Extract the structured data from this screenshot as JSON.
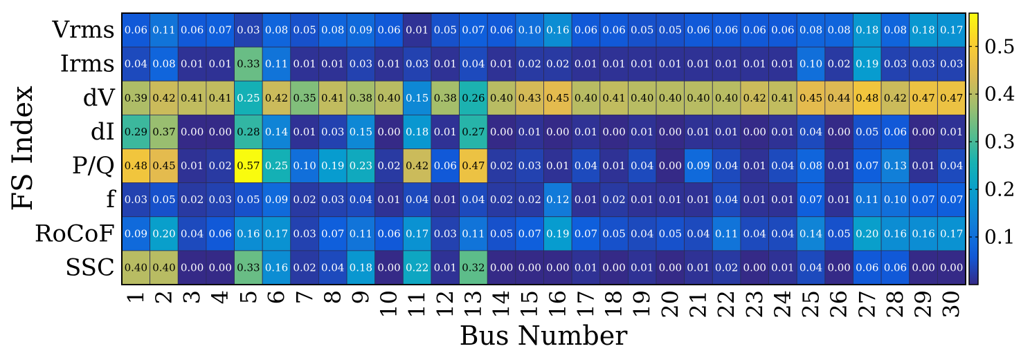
{
  "chart_data": {
    "type": "heatmap",
    "xlabel": "Bus Number",
    "ylabel": "FS Index",
    "x_categories": [
      "1",
      "2",
      "3",
      "4",
      "5",
      "6",
      "7",
      "8",
      "9",
      "10",
      "11",
      "12",
      "13",
      "14",
      "15",
      "16",
      "17",
      "18",
      "19",
      "20",
      "21",
      "22",
      "23",
      "24",
      "25",
      "26",
      "27",
      "28",
      "29",
      "30"
    ],
    "y_categories": [
      "Vrms",
      "Irms",
      "dV",
      "dI",
      "P/Q",
      "f",
      "RoCoF",
      "SSC"
    ],
    "values": [
      [
        0.06,
        0.11,
        0.06,
        0.07,
        0.03,
        0.08,
        0.05,
        0.08,
        0.09,
        0.06,
        0.01,
        0.05,
        0.07,
        0.06,
        0.1,
        0.16,
        0.06,
        0.06,
        0.05,
        0.05,
        0.06,
        0.06,
        0.06,
        0.06,
        0.08,
        0.08,
        0.18,
        0.08,
        0.18,
        0.17
      ],
      [
        0.04,
        0.08,
        0.01,
        0.01,
        0.33,
        0.11,
        0.01,
        0.01,
        0.03,
        0.01,
        0.03,
        0.01,
        0.04,
        0.01,
        0.02,
        0.02,
        0.01,
        0.01,
        0.01,
        0.01,
        0.01,
        0.01,
        0.01,
        0.01,
        0.1,
        0.02,
        0.19,
        0.03,
        0.03,
        0.03
      ],
      [
        0.39,
        0.42,
        0.41,
        0.41,
        0.25,
        0.42,
        0.35,
        0.41,
        0.38,
        0.4,
        0.15,
        0.38,
        0.26,
        0.4,
        0.43,
        0.45,
        0.4,
        0.41,
        0.4,
        0.4,
        0.4,
        0.4,
        0.42,
        0.41,
        0.45,
        0.44,
        0.48,
        0.42,
        0.47,
        0.47
      ],
      [
        0.29,
        0.37,
        0.0,
        0.0,
        0.28,
        0.14,
        0.01,
        0.03,
        0.15,
        0.0,
        0.18,
        0.01,
        0.27,
        0.0,
        0.01,
        0.0,
        0.01,
        0.0,
        0.01,
        0.0,
        0.01,
        0.01,
        0.0,
        0.01,
        0.04,
        0.0,
        0.05,
        0.06,
        0.0,
        0.01
      ],
      [
        0.48,
        0.45,
        0.01,
        0.02,
        0.57,
        0.25,
        0.1,
        0.19,
        0.23,
        0.02,
        0.42,
        0.06,
        0.47,
        0.02,
        0.03,
        0.01,
        0.04,
        0.01,
        0.04,
        0.0,
        0.09,
        0.04,
        0.01,
        0.04,
        0.08,
        0.01,
        0.07,
        0.13,
        0.01,
        0.04
      ],
      [
        0.03,
        0.05,
        0.02,
        0.03,
        0.05,
        0.09,
        0.02,
        0.03,
        0.04,
        0.01,
        0.04,
        0.01,
        0.04,
        0.02,
        0.02,
        0.12,
        0.01,
        0.02,
        0.01,
        0.01,
        0.01,
        0.04,
        0.01,
        0.01,
        0.07,
        0.01,
        0.11,
        0.1,
        0.07,
        0.07
      ],
      [
        0.09,
        0.2,
        0.04,
        0.06,
        0.16,
        0.17,
        0.03,
        0.07,
        0.11,
        0.06,
        0.17,
        0.03,
        0.11,
        0.05,
        0.07,
        0.19,
        0.07,
        0.05,
        0.04,
        0.05,
        0.04,
        0.11,
        0.04,
        0.04,
        0.14,
        0.05,
        0.2,
        0.16,
        0.16,
        0.17
      ],
      [
        0.4,
        0.4,
        0.0,
        0.0,
        0.33,
        0.16,
        0.02,
        0.04,
        0.18,
        0.0,
        0.22,
        0.01,
        0.32,
        0.0,
        0.0,
        0.0,
        0.01,
        0.0,
        0.01,
        0.0,
        0.01,
        0.02,
        0.0,
        0.01,
        0.04,
        0.0,
        0.06,
        0.06,
        0.0,
        0.0
      ]
    ],
    "colorbar": {
      "colormap": "parula",
      "range": [
        0.0,
        0.57
      ],
      "ticks": [
        0.1,
        0.2,
        0.3,
        0.4,
        0.5
      ],
      "tick_labels": [
        "0.1",
        "0.2",
        "0.3",
        "0.4",
        "0.5"
      ]
    },
    "grid": true,
    "cell_labels": true,
    "value_format": "2 decimals"
  }
}
